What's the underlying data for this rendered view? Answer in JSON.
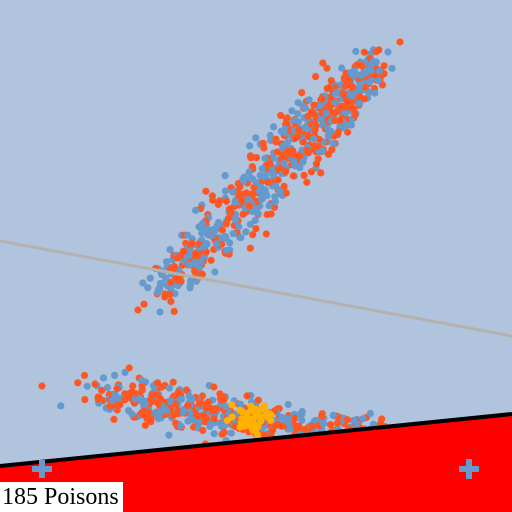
{
  "status": {
    "poison_count_label": "185 Poisons"
  },
  "colors": {
    "background": "#b0c4de",
    "region_fill": "#ff0000",
    "boundary_line": "#000000",
    "gray_line": "#b5b1ad",
    "class_a": "#ff5722",
    "class_b": "#6699cc",
    "highlight": "#ffb000"
  }
}
